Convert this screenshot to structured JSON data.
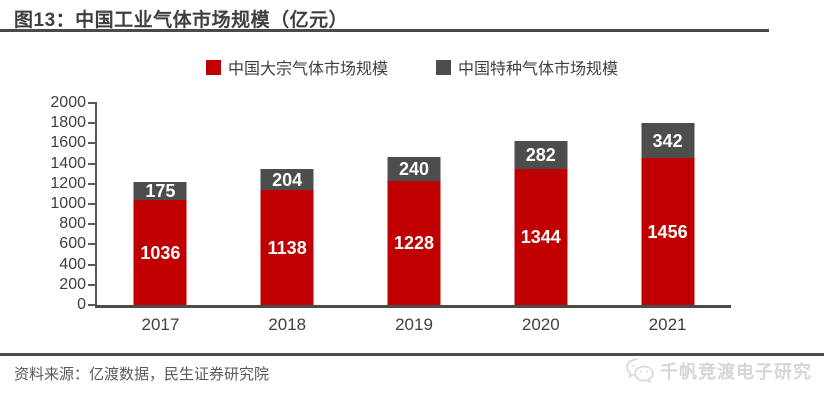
{
  "figure": {
    "title": "图13：中国工业气体市场规模（亿元）",
    "source": "资料来源：亿渡数据，民生证券研究院",
    "watermark": "千帆竞渡电子研究"
  },
  "colors": {
    "bulk_red": "#C00000",
    "specialty_gray": "#4D4D4D",
    "axis": "#595959",
    "text": "#3F3F3F",
    "watermark_gray": "#D6D6D6"
  },
  "chart_data": {
    "type": "bar",
    "stacked": true,
    "title": "中国工业气体市场规模（亿元）",
    "categories": [
      "2017",
      "2018",
      "2019",
      "2020",
      "2021"
    ],
    "series": [
      {
        "name": "中国大宗气体市场规模",
        "color": "#C00000",
        "values": [
          1036,
          1138,
          1228,
          1344,
          1456
        ]
      },
      {
        "name": "中国特种气体市场规模",
        "color": "#4D4D4D",
        "values": [
          175,
          204,
          240,
          282,
          342
        ]
      }
    ],
    "xlabel": "",
    "ylabel": "",
    "ylim": [
      0,
      2000
    ],
    "ytick_step": 200,
    "grid": false,
    "legend_position": "top",
    "data_labels": true
  }
}
